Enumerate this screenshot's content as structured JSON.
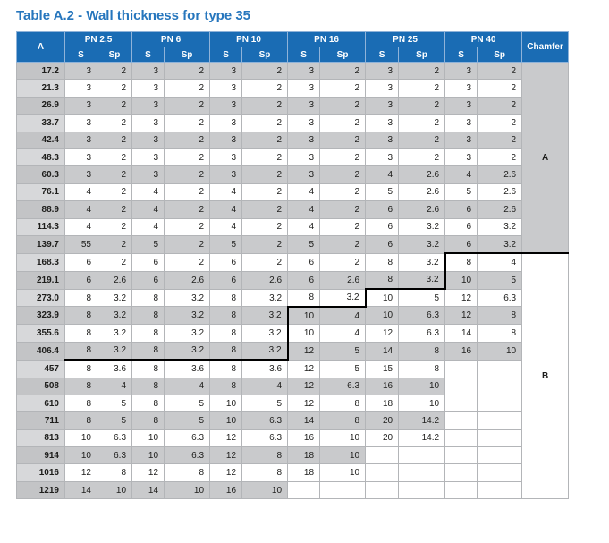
{
  "header": {
    "title": "Table A.2 - Wall thickness for type 35"
  },
  "table": {
    "first_column": "A",
    "groups": [
      "PN 2,5",
      "PN 6",
      "PN 10",
      "PN 16",
      "PN 25",
      "PN 40"
    ],
    "sub_columns": [
      "S",
      "Sp"
    ],
    "last_column": "Chamfer",
    "chamfer": [
      "A",
      "B"
    ],
    "rows": [
      [
        "17.2",
        "3",
        "2",
        "3",
        "2",
        "3",
        "2",
        "3",
        "2",
        "3",
        "2",
        "3",
        "2"
      ],
      [
        "21.3",
        "3",
        "2",
        "3",
        "2",
        "3",
        "2",
        "3",
        "2",
        "3",
        "2",
        "3",
        "2"
      ],
      [
        "26.9",
        "3",
        "2",
        "3",
        "2",
        "3",
        "2",
        "3",
        "2",
        "3",
        "2",
        "3",
        "2"
      ],
      [
        "33.7",
        "3",
        "2",
        "3",
        "2",
        "3",
        "2",
        "3",
        "2",
        "3",
        "2",
        "3",
        "2"
      ],
      [
        "42.4",
        "3",
        "2",
        "3",
        "2",
        "3",
        "2",
        "3",
        "2",
        "3",
        "2",
        "3",
        "2"
      ],
      [
        "48.3",
        "3",
        "2",
        "3",
        "2",
        "3",
        "2",
        "3",
        "2",
        "3",
        "2",
        "3",
        "2"
      ],
      [
        "60.3",
        "3",
        "2",
        "3",
        "2",
        "3",
        "2",
        "3",
        "2",
        "4",
        "2.6",
        "4",
        "2.6"
      ],
      [
        "76.1",
        "4",
        "2",
        "4",
        "2",
        "4",
        "2",
        "4",
        "2",
        "5",
        "2.6",
        "5",
        "2.6"
      ],
      [
        "88.9",
        "4",
        "2",
        "4",
        "2",
        "4",
        "2",
        "4",
        "2",
        "6",
        "2.6",
        "6",
        "2.6"
      ],
      [
        "114.3",
        "4",
        "2",
        "4",
        "2",
        "4",
        "2",
        "4",
        "2",
        "6",
        "3.2",
        "6",
        "3.2"
      ],
      [
        "139.7",
        "55",
        "2",
        "5",
        "2",
        "5",
        "2",
        "5",
        "2",
        "6",
        "3.2",
        "6",
        "3.2"
      ],
      [
        "168.3",
        "6",
        "2",
        "6",
        "2",
        "6",
        "2",
        "6",
        "2",
        "8",
        "3.2",
        "8",
        "4"
      ],
      [
        "219.1",
        "6",
        "2.6",
        "6",
        "2.6",
        "6",
        "2.6",
        "6",
        "2.6",
        "8",
        "3.2",
        "10",
        "5"
      ],
      [
        "273.0",
        "8",
        "3.2",
        "8",
        "3.2",
        "8",
        "3.2",
        "8",
        "3.2",
        "10",
        "5",
        "12",
        "6.3"
      ],
      [
        "323.9",
        "8",
        "3.2",
        "8",
        "3.2",
        "8",
        "3.2",
        "10",
        "4",
        "10",
        "6.3",
        "12",
        "8"
      ],
      [
        "355.6",
        "8",
        "3.2",
        "8",
        "3.2",
        "8",
        "3.2",
        "10",
        "4",
        "12",
        "6.3",
        "14",
        "8"
      ],
      [
        "406.4",
        "8",
        "3.2",
        "8",
        "3.2",
        "8",
        "3.2",
        "12",
        "5",
        "14",
        "8",
        "16",
        "10"
      ],
      [
        "457",
        "8",
        "3.6",
        "8",
        "3.6",
        "8",
        "3.6",
        "12",
        "5",
        "15",
        "8",
        null,
        null
      ],
      [
        "508",
        "8",
        "4",
        "8",
        "4",
        "8",
        "4",
        "12",
        "6.3",
        "16",
        "10",
        null,
        null
      ],
      [
        "610",
        "8",
        "5",
        "8",
        "5",
        "10",
        "5",
        "12",
        "8",
        "18",
        "10",
        null,
        null
      ],
      [
        "711",
        "8",
        "5",
        "8",
        "5",
        "10",
        "6.3",
        "14",
        "8",
        "20",
        "14.2",
        null,
        null
      ],
      [
        "813",
        "10",
        "6.3",
        "10",
        "6.3",
        "12",
        "6.3",
        "16",
        "10",
        "20",
        "14.2",
        null,
        null
      ],
      [
        "914",
        "10",
        "6.3",
        "10",
        "6.3",
        "12",
        "8",
        "18",
        "10",
        null,
        null,
        null,
        null
      ],
      [
        "1016",
        "12",
        "8",
        "12",
        "8",
        "12",
        "8",
        "18",
        "10",
        null,
        null,
        null,
        null
      ],
      [
        "1219",
        "14",
        "10",
        "14",
        "10",
        "16",
        "10",
        null,
        null,
        null,
        null,
        null,
        null
      ]
    ]
  }
}
